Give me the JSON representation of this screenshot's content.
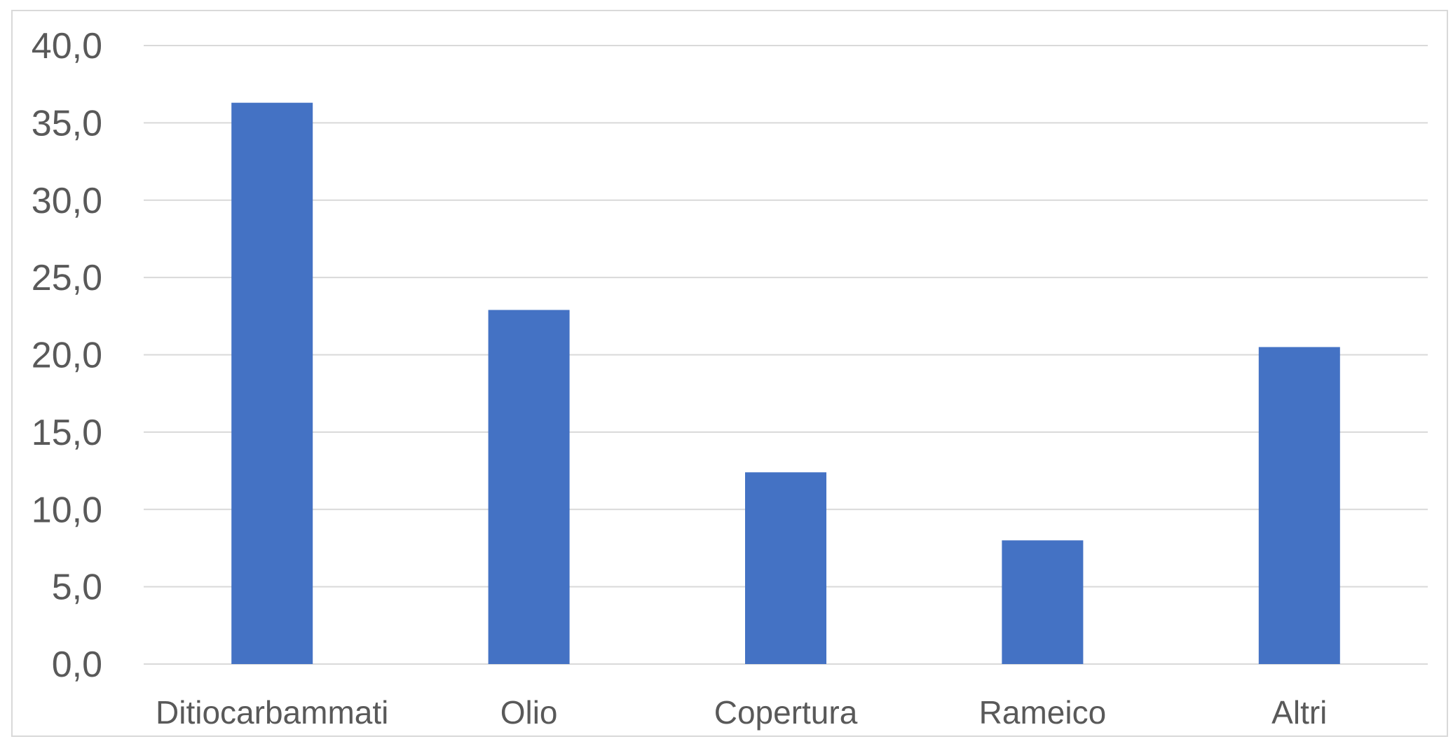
{
  "chart_data": {
    "type": "bar",
    "categories": [
      "Ditiocarbammati",
      "Olio",
      "Copertura",
      "Rameico",
      "Altri"
    ],
    "values": [
      36.3,
      22.9,
      12.4,
      8.0,
      20.5
    ],
    "ylim": [
      0,
      40
    ],
    "yticks": [
      0,
      5,
      10,
      15,
      20,
      25,
      30,
      35,
      40
    ],
    "ytick_labels": [
      "0,0",
      "5,0",
      "10,0",
      "15,0",
      "20,0",
      "25,0",
      "30,0",
      "35,0",
      "40,0"
    ],
    "bar_color": "#4472C4",
    "grid": true,
    "legend": "none"
  }
}
